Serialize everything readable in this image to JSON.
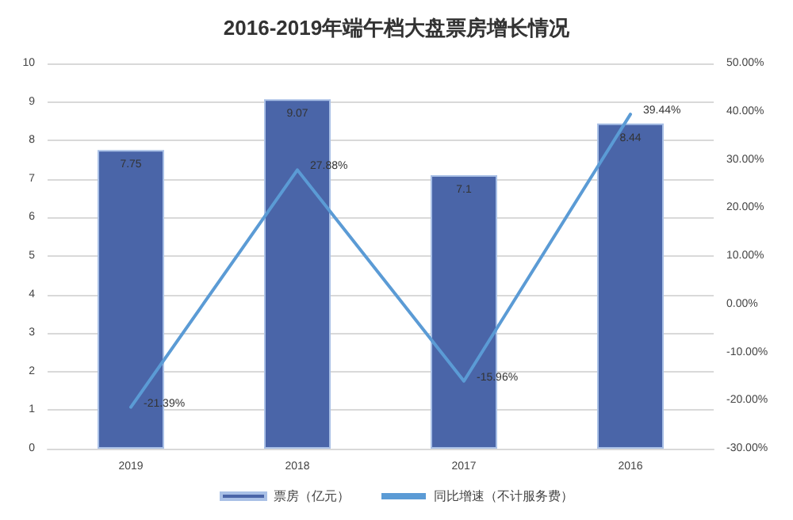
{
  "chart_data": {
    "type": "bar",
    "title": "2016-2019年端午档大盘票房增长情况",
    "categories": [
      "2019",
      "2018",
      "2017",
      "2016"
    ],
    "series": [
      {
        "name": "票房（亿元）",
        "color": "#4a65a8",
        "values": [
          7.75,
          9.07,
          7.1,
          8.44
        ],
        "value_labels": [
          "7.75",
          "9.07",
          "7.1",
          "8.44"
        ]
      },
      {
        "name": "同比增速（不计服务费）",
        "type": "line",
        "axis": "y2",
        "color": "#5b9bd5",
        "values": [
          -21.39,
          27.88,
          -15.96,
          39.44
        ],
        "value_labels": [
          "-21.39%",
          "27.88%",
          "-15.96%",
          "39.44%"
        ]
      }
    ],
    "ylim": [
      0,
      10
    ],
    "yticks": [
      0,
      1,
      2,
      3,
      4,
      5,
      6,
      7,
      8,
      9,
      10
    ],
    "y2lim": [
      -30,
      50
    ],
    "y2ticks": [
      {
        "value": -30,
        "label": "-30.00%"
      },
      {
        "value": -20,
        "label": "-20.00%"
      },
      {
        "value": -10,
        "label": "-10.00%"
      },
      {
        "value": 0,
        "label": "0.00%"
      },
      {
        "value": 10,
        "label": "10.00%"
      },
      {
        "value": 20,
        "label": "20.00%"
      },
      {
        "value": 30,
        "label": "30.00%"
      },
      {
        "value": 40,
        "label": "40.00%"
      },
      {
        "value": 50,
        "label": "50.00%"
      }
    ],
    "grid": "y",
    "legend": "bottom",
    "marker": "none",
    "line_style": "solid"
  }
}
